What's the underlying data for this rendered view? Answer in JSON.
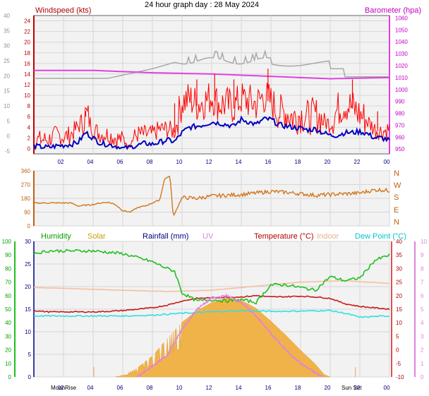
{
  "title": "24 hour graph day : 28 May 2024",
  "colors": {
    "windspeed": "#ff0000",
    "gust": "#ff2020",
    "avg_wind": "#0000c0",
    "barometer": "#e040e0",
    "barometer_label": "#c000c0",
    "baro_grey": "#a8a8a8",
    "direction": "#d07820",
    "humidity": "#20c020",
    "humidity_label": "#00a000",
    "solar": "#f0b040",
    "solar_label": "#c8a000",
    "rainfall_label": "#000080",
    "uv": "#e080e0",
    "temperature": "#c81818",
    "temperature_label": "#b00000",
    "indoor": "#f4c0a0",
    "indoor_label": "#e8b090",
    "dewpoint": "#30e0e0",
    "dewpoint_label": "#00c8c8"
  },
  "chart_data": [
    {
      "type": "line",
      "title": "",
      "x_ticks": [
        "02",
        "04",
        "06",
        "08",
        "10",
        "12",
        "14",
        "16",
        "18",
        "20",
        "22",
        "00"
      ],
      "y_left_label": "Windspeed (kts)",
      "y_left_ticks": [
        0,
        2,
        4,
        6,
        8,
        10,
        12,
        14,
        16,
        18,
        20,
        22,
        24
      ],
      "y_left_ylim": [
        -1,
        25
      ],
      "y_left_outer_ticks": [
        -5,
        0,
        5,
        10,
        15,
        20,
        25,
        30,
        35,
        40
      ],
      "y_right_label": "Barometer (hpa)",
      "y_right_ticks": [
        950,
        960,
        970,
        980,
        990,
        1000,
        1010,
        1020,
        1030,
        1040,
        1050,
        1060
      ],
      "y_right_ylim": [
        946,
        1062
      ],
      "series": [
        {
          "name": "Windspeed (kts)",
          "x": [
            0,
            0.5,
            1,
            1.5,
            2,
            2.5,
            3,
            3.5,
            4,
            4.5,
            5,
            5.5,
            6,
            6.5,
            7,
            7.5,
            8,
            8.5,
            9,
            9.5,
            10,
            10.5,
            11,
            11.5,
            12,
            12.5,
            13,
            13.5,
            14,
            14.5,
            15,
            15.5,
            16,
            16.5,
            17,
            17.5,
            18,
            18.5,
            19,
            19.5,
            20,
            20.5,
            21,
            21.5,
            22,
            22.5,
            23,
            23.5,
            24
          ],
          "values": [
            1.5,
            1.5,
            1.5,
            2.5,
            2,
            2.5,
            4,
            6,
            3.5,
            2.5,
            2.5,
            1.8,
            1.5,
            1.2,
            2.5,
            2.5,
            2.5,
            3.5,
            3.5,
            3,
            8.5,
            9,
            8,
            8.5,
            9.5,
            8,
            8,
            7.5,
            9,
            8.5,
            8,
            9.5,
            8.5,
            6.5,
            6.5,
            5.5,
            6,
            5.5,
            6,
            5,
            4.5,
            7,
            8,
            7.5,
            6,
            5,
            3.5,
            3,
            3.5
          ]
        },
        {
          "name": "Gust peaks",
          "x": [
            3.5,
            9.5,
            11,
            12.2,
            13.5,
            15.8,
            21.5,
            23.2
          ],
          "values": [
            7,
            8.5,
            13,
            14,
            13,
            15,
            13,
            7
          ]
        },
        {
          "name": "Average wind",
          "x": [
            0,
            0.5,
            1,
            1.5,
            2,
            2.5,
            3,
            3.5,
            4,
            4.5,
            5,
            5.5,
            6,
            6.5,
            7,
            7.5,
            8,
            8.5,
            9,
            9.5,
            10,
            10.5,
            11,
            11.5,
            12,
            12.5,
            13,
            13.5,
            14,
            14.5,
            15,
            15.5,
            16,
            16.5,
            17,
            17.5,
            18,
            18.5,
            19,
            19.5,
            20,
            20.5,
            21,
            21.5,
            22,
            22.5,
            23,
            23.5,
            24
          ],
          "values": [
            0.5,
            0.3,
            0.2,
            0.5,
            0.6,
            0.8,
            1.2,
            3,
            2,
            1,
            0.8,
            0.5,
            0,
            0.2,
            0.6,
            1,
            0.8,
            1.2,
            1.6,
            1.3,
            3,
            4,
            4.2,
            4.5,
            5,
            4.8,
            4.5,
            4.2,
            5.5,
            5,
            4.5,
            5.5,
            5.5,
            4.5,
            4.2,
            4,
            3.8,
            3.5,
            3.7,
            3,
            2.5,
            2.5,
            3,
            3,
            3.2,
            2.8,
            2,
            2,
            1.5
          ]
        },
        {
          "name": "Barometer (hpa)",
          "x": [
            0,
            4,
            8,
            12,
            16,
            20,
            24
          ],
          "values": [
            1016,
            1016,
            1014,
            1013,
            1011,
            1009,
            1010
          ]
        }
      ]
    },
    {
      "type": "line",
      "title": "",
      "y_left_ticks": [
        0,
        90,
        180,
        270,
        360
      ],
      "y_left_ylim": [
        0,
        360
      ],
      "y_right_ticks": [
        "N",
        "W",
        "S",
        "E",
        "N"
      ],
      "series": [
        {
          "name": "Wind direction",
          "x": [
            0,
            1,
            2,
            2.5,
            3,
            4,
            4.5,
            5,
            5.5,
            6,
            6.5,
            7,
            7.5,
            8,
            8.5,
            8.8,
            9,
            9.2,
            9.4,
            10,
            11,
            12,
            13,
            14,
            15,
            16,
            17,
            18,
            19,
            20,
            21,
            22,
            23,
            23.5,
            24
          ],
          "values": [
            150,
            150,
            150,
            150,
            130,
            140,
            150,
            155,
            140,
            100,
            90,
            120,
            130,
            150,
            170,
            300,
            320,
            320,
            60,
            185,
            180,
            195,
            200,
            205,
            215,
            225,
            220,
            210,
            200,
            205,
            210,
            215,
            235,
            235,
            230
          ]
        }
      ]
    },
    {
      "type": "area",
      "title": "",
      "legend": [
        "Humidity",
        "Solar",
        "Rainfall (mm)",
        "UV",
        "Temperature (°C)",
        "Indoor",
        "Dew Point (°C)"
      ],
      "y_left_ticks": [
        0,
        10,
        20,
        30,
        40,
        50,
        60,
        70,
        80,
        90,
        100
      ],
      "y_rain_ticks": [
        0,
        5,
        10,
        15,
        20,
        25,
        30
      ],
      "y_temp_ticks": [
        -10,
        -5,
        0,
        5,
        10,
        15,
        20,
        25,
        30,
        35,
        40
      ],
      "y_uv_ticks": [
        0,
        1,
        2,
        3,
        4,
        5,
        6,
        7,
        8,
        9,
        10
      ],
      "x_extra_labels": [
        "MoonRise",
        "Sun Set"
      ],
      "series": [
        {
          "name": "Humidity",
          "x": [
            0,
            1,
            2,
            3,
            4,
            5,
            6,
            7,
            8,
            9,
            9.5,
            10,
            11,
            12,
            13,
            14,
            15,
            16,
            17,
            18,
            19,
            20,
            21,
            22,
            23,
            24
          ],
          "values": [
            91,
            93,
            93,
            93,
            93,
            92,
            91,
            88,
            85,
            80,
            78,
            62,
            56,
            57,
            56,
            57,
            55,
            68,
            68,
            66,
            64,
            74,
            71,
            73,
            86,
            90
          ]
        },
        {
          "name": "Solar",
          "x": [
            5.5,
            6,
            7,
            8,
            9,
            10,
            11,
            12,
            13,
            14,
            15,
            16,
            17,
            18,
            19,
            19.6,
            20
          ],
          "values": [
            0,
            15,
            80,
            180,
            330,
            470,
            570,
            640,
            680,
            660,
            590,
            480,
            360,
            230,
            110,
            20,
            0
          ]
        },
        {
          "name": "UV",
          "x": [
            7,
            8,
            9,
            10,
            11,
            12,
            13,
            14,
            15,
            16,
            17,
            18,
            19,
            19.5
          ],
          "values": [
            0,
            0.8,
            1.6,
            3.5,
            5,
            5.8,
            6,
            5.5,
            4.5,
            3.2,
            2,
            1,
            0.3,
            0
          ]
        },
        {
          "name": "Temperature (°C)",
          "x": [
            0,
            1,
            2,
            3,
            4,
            5,
            6,
            7,
            8,
            9,
            10,
            11,
            12,
            13,
            14,
            15,
            16,
            17,
            18,
            19,
            20,
            21,
            22,
            23,
            24
          ],
          "values": [
            14.5,
            14,
            14,
            14,
            14,
            14.2,
            14.5,
            15,
            15.5,
            16.5,
            18,
            19,
            19.2,
            19.4,
            19.5,
            20,
            19.5,
            19.6,
            19.8,
            19.5,
            19,
            17,
            16,
            15.5,
            15
          ]
        },
        {
          "name": "Indoor",
          "x": [
            0,
            3,
            6,
            9,
            12,
            15,
            18,
            21,
            24
          ],
          "values": [
            23,
            22.5,
            22,
            21.5,
            22,
            23.5,
            25,
            25.5,
            24.5
          ]
        },
        {
          "name": "Dew Point (°C)",
          "x": [
            0,
            2,
            4,
            6,
            8,
            10,
            12,
            14,
            16,
            18,
            20,
            21,
            22,
            23,
            24
          ],
          "values": [
            12.5,
            12.5,
            12.5,
            12.5,
            12.8,
            13.5,
            14,
            14.5,
            14.2,
            14.3,
            14.5,
            13.5,
            12,
            12.3,
            12.5
          ]
        }
      ]
    }
  ]
}
